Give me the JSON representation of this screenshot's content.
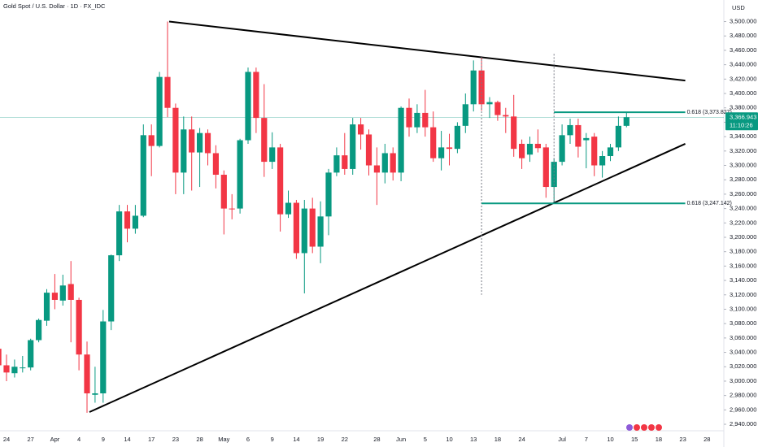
{
  "chart_data": {
    "type": "candlestick",
    "title": "Gold Spot / U.S. Dollar · 1D · FX_IDC",
    "currency": "USD",
    "categories": [
      null,
      "24",
      null,
      null,
      "27",
      null,
      null,
      "Apr",
      null,
      null,
      "4",
      null,
      null,
      "9",
      null,
      null,
      "14",
      null,
      null,
      "17",
      null,
      null,
      "23",
      null,
      null,
      "28",
      null,
      null,
      "May",
      null,
      null,
      "6",
      null,
      null,
      "9",
      null,
      null,
      "14",
      null,
      null,
      "19",
      null,
      null,
      "22",
      null,
      null,
      null,
      "28",
      null,
      null,
      "Jun",
      null,
      null,
      "5",
      null,
      null,
      "10",
      null,
      null,
      "13",
      null,
      null,
      "18",
      null,
      null,
      "24",
      null,
      null,
      null,
      null,
      "Jul",
      null,
      null,
      "7",
      null,
      null,
      "10",
      null,
      null,
      "15",
      null,
      null,
      "18",
      null,
      null,
      "23",
      null,
      null,
      "28"
    ],
    "open": [
      3045,
      3022,
      3011,
      3018,
      3019,
      3057,
      3084,
      3123,
      3112,
      3135,
      3113,
      3037,
      2981,
      2983,
      3083,
      3175,
      3236,
      3212,
      3230,
      3342,
      3327,
      3423,
      3380,
      3290,
      3350,
      3318,
      3345,
      3317,
      3287,
      3240,
      3240,
      3335,
      3430,
      3366,
      3305,
      3325,
      3232,
      3248,
      3178,
      3240,
      3187,
      3229,
      3290,
      3314,
      3295,
      3357,
      3343,
      3300,
      3290,
      3317,
      3290,
      3380,
      3353,
      3373,
      3353,
      3310,
      3325,
      3323,
      3355,
      3385,
      3432,
      3385,
      3388,
      3370,
      3368,
      3330,
      3315,
      3330,
      3325,
      3270,
      3305,
      3342,
      3356,
      3335,
      3340,
      3300,
      3313,
      3325,
      3355,
      null,
      null,
      null,
      null,
      null,
      null,
      null,
      null,
      null,
      null
    ],
    "high": [
      3057,
      3037,
      3030,
      3035,
      3059,
      3087,
      3128,
      3149,
      3148,
      3167,
      3116,
      3055,
      3020,
      3099,
      3176,
      3245,
      3245,
      3245,
      3357,
      3357,
      3430,
      3500,
      3386,
      3368,
      3368,
      3352,
      3350,
      3328,
      3293,
      3260,
      3337,
      3436,
      3436,
      3413,
      3346,
      3330,
      3265,
      3252,
      3252,
      3255,
      3250,
      3295,
      3325,
      3345,
      3366,
      3366,
      3350,
      3325,
      3330,
      3325,
      3382,
      3393,
      3385,
      3405,
      3375,
      3348,
      3344,
      3360,
      3400,
      3446,
      3452,
      3395,
      3390,
      3380,
      3398,
      3336,
      3340,
      3350,
      3330,
      3310,
      3357,
      3365,
      3365,
      3345,
      3345,
      3320,
      3330,
      3368,
      3374,
      null,
      null,
      null,
      null,
      null,
      null,
      null,
      null,
      null,
      null
    ],
    "low": [
      3000,
      3000,
      3005,
      3012,
      3015,
      3054,
      3077,
      3100,
      3105,
      3054,
      3015,
      2956,
      2970,
      2970,
      3071,
      3167,
      3193,
      3205,
      3228,
      3285,
      3325,
      3367,
      3260,
      3260,
      3265,
      3270,
      3300,
      3268,
      3204,
      3225,
      3233,
      3330,
      3345,
      3284,
      3295,
      3208,
      3227,
      3170,
      3122,
      3178,
      3164,
      3203,
      3285,
      3287,
      3287,
      3322,
      3286,
      3245,
      3275,
      3279,
      3278,
      3340,
      3345,
      3340,
      3305,
      3293,
      3300,
      3317,
      3345,
      3375,
      3376,
      3366,
      3362,
      3345,
      3312,
      3295,
      3305,
      3318,
      3255,
      3247,
      3300,
      3330,
      3311,
      3296,
      3285,
      3283,
      3306,
      3320,
      3353,
      null,
      null,
      null,
      null,
      null,
      null,
      null,
      null,
      null,
      null
    ],
    "close": [
      3022,
      3012,
      3020,
      3019,
      3057,
      3085,
      3123,
      3113,
      3133,
      3113,
      3037,
      2983,
      2983,
      3083,
      3175,
      3236,
      3212,
      3230,
      3342,
      3327,
      3423,
      3380,
      3290,
      3350,
      3318,
      3345,
      3317,
      3287,
      3240,
      3239,
      3335,
      3430,
      3366,
      3305,
      3325,
      3232,
      3248,
      3178,
      3240,
      3187,
      3229,
      3290,
      3314,
      3295,
      3357,
      3343,
      3300,
      3290,
      3317,
      3290,
      3380,
      3353,
      3373,
      3353,
      3310,
      3325,
      3323,
      3355,
      3385,
      3432,
      3385,
      3388,
      3370,
      3368,
      3323,
      3310,
      3330,
      3324,
      3270,
      3305,
      3342,
      3356,
      3326,
      3338,
      3300,
      3313,
      3325,
      3355,
      3366.943,
      null,
      null,
      null,
      null,
      null,
      null,
      null,
      null,
      null,
      null
    ],
    "up_color": "#089981",
    "down_color": "#f23645",
    "ylim": [
      2931,
      3530
    ],
    "yticks": [
      {
        "value": 2940,
        "label": "2,940.000"
      },
      {
        "value": 2960,
        "label": "2,960.000"
      },
      {
        "value": 2980,
        "label": "2,980.000"
      },
      {
        "value": 3000,
        "label": "3,000.000"
      },
      {
        "value": 3020,
        "label": "3,020.000"
      },
      {
        "value": 3040,
        "label": "3,040.000"
      },
      {
        "value": 3060,
        "label": "3,060.000"
      },
      {
        "value": 3080,
        "label": "3,080.000"
      },
      {
        "value": 3100,
        "label": "3,100.000"
      },
      {
        "value": 3120,
        "label": "3,120.000"
      },
      {
        "value": 3140,
        "label": "3,140.000"
      },
      {
        "value": 3160,
        "label": "3,160.000"
      },
      {
        "value": 3180,
        "label": "3,180.000"
      },
      {
        "value": 3200,
        "label": "3,200.000"
      },
      {
        "value": 3220,
        "label": "3,220.000"
      },
      {
        "value": 3240,
        "label": "3,240.000"
      },
      {
        "value": 3260,
        "label": "3,260.000"
      },
      {
        "value": 3280,
        "label": "3,280.000"
      },
      {
        "value": 3300,
        "label": "3,300.000"
      },
      {
        "value": 3320,
        "label": "3,320.000"
      },
      {
        "value": 3340,
        "label": "3,340.000"
      },
      {
        "value": 3360,
        "label": "3,360.000"
      },
      {
        "value": 3380,
        "label": "3,380.000"
      },
      {
        "value": 3400,
        "label": "3,400.000"
      },
      {
        "value": 3420,
        "label": "3,420.000"
      },
      {
        "value": 3440,
        "label": "3,440.000"
      },
      {
        "value": 3460,
        "label": "3,460.000"
      },
      {
        "value": 3480,
        "label": "3,480.000"
      },
      {
        "value": 3500,
        "label": "3,500.000"
      }
    ],
    "grid": false,
    "last_price": {
      "value": 3366.943,
      "label": "3,366.943"
    },
    "countdown": "11:10:26",
    "trendlines": [
      {
        "x": [
          21.2,
          85.3
        ],
        "y": [
          3500,
          3418
        ]
      },
      {
        "x": [
          11.3,
          85.3
        ],
        "y": [
          2957,
          3330
        ]
      }
    ],
    "trendline_color": "#000000",
    "vertical_markers": [
      {
        "x": 60,
        "y": [
          3452,
          3120
        ]
      },
      {
        "x": 69,
        "y": [
          3455,
          3247
        ]
      }
    ],
    "fib_levels": [
      {
        "value": 3373.827,
        "label": "0.618 (3,373.827)",
        "start": 69,
        "end": 85.3
      },
      {
        "value": 3247.142,
        "label": "0.618 (3,247.142)",
        "start": 60,
        "end": 85.3
      }
    ],
    "fib_color": "#089981"
  }
}
